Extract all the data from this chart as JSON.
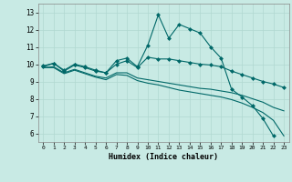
{
  "title": "",
  "xlabel": "Humidex (Indice chaleur)",
  "ylabel": "",
  "background_color": "#c8eae4",
  "grid_color": "#b0d8d0",
  "line_color": "#006868",
  "xlim": [
    -0.5,
    23.5
  ],
  "ylim": [
    5.5,
    13.5
  ],
  "xticks": [
    0,
    1,
    2,
    3,
    4,
    5,
    6,
    7,
    8,
    9,
    10,
    11,
    12,
    13,
    14,
    15,
    16,
    17,
    18,
    19,
    20,
    21,
    22,
    23
  ],
  "yticks": [
    6,
    7,
    8,
    9,
    10,
    11,
    12,
    13
  ],
  "line1_x": [
    0,
    1,
    2,
    3,
    4,
    5,
    6,
    7,
    8,
    9,
    10,
    11,
    12,
    13,
    14,
    15,
    16,
    17,
    18,
    19,
    20,
    21,
    22
  ],
  "line1_y": [
    9.9,
    10.05,
    9.65,
    10.0,
    9.85,
    9.65,
    9.5,
    10.2,
    10.35,
    9.85,
    11.1,
    12.85,
    11.5,
    12.3,
    12.05,
    11.8,
    11.0,
    10.35,
    8.55,
    8.1,
    7.6,
    6.85,
    5.85
  ],
  "line2_x": [
    0,
    1,
    2,
    3,
    4,
    5,
    6,
    7,
    8,
    9,
    10,
    11,
    12,
    13,
    14,
    15,
    16,
    17,
    18,
    19,
    20,
    21,
    22,
    23
  ],
  "line2_y": [
    9.85,
    10.05,
    9.6,
    9.95,
    9.8,
    9.6,
    9.5,
    10.0,
    10.2,
    9.8,
    10.4,
    10.3,
    10.3,
    10.2,
    10.1,
    10.0,
    9.95,
    9.85,
    9.6,
    9.4,
    9.2,
    9.0,
    8.85,
    8.65
  ],
  "line3_x": [
    0,
    1,
    2,
    3,
    4,
    5,
    6,
    7,
    8,
    9,
    10,
    11,
    12,
    13,
    14,
    15,
    16,
    17,
    18,
    19,
    20,
    21,
    22,
    23
  ],
  "line3_y": [
    9.8,
    9.85,
    9.5,
    9.7,
    9.5,
    9.3,
    9.2,
    9.5,
    9.5,
    9.2,
    9.1,
    9.0,
    8.9,
    8.8,
    8.7,
    8.6,
    8.55,
    8.45,
    8.35,
    8.2,
    8.0,
    7.8,
    7.5,
    7.3
  ],
  "line4_x": [
    0,
    1,
    2,
    3,
    4,
    5,
    6,
    7,
    8,
    9,
    10,
    11,
    12,
    13,
    14,
    15,
    16,
    17,
    18,
    19,
    20,
    21,
    22,
    23
  ],
  "line4_y": [
    9.8,
    9.8,
    9.45,
    9.65,
    9.45,
    9.25,
    9.1,
    9.4,
    9.35,
    9.05,
    8.9,
    8.8,
    8.65,
    8.5,
    8.4,
    8.3,
    8.2,
    8.1,
    7.95,
    7.75,
    7.5,
    7.2,
    6.75,
    5.85
  ]
}
